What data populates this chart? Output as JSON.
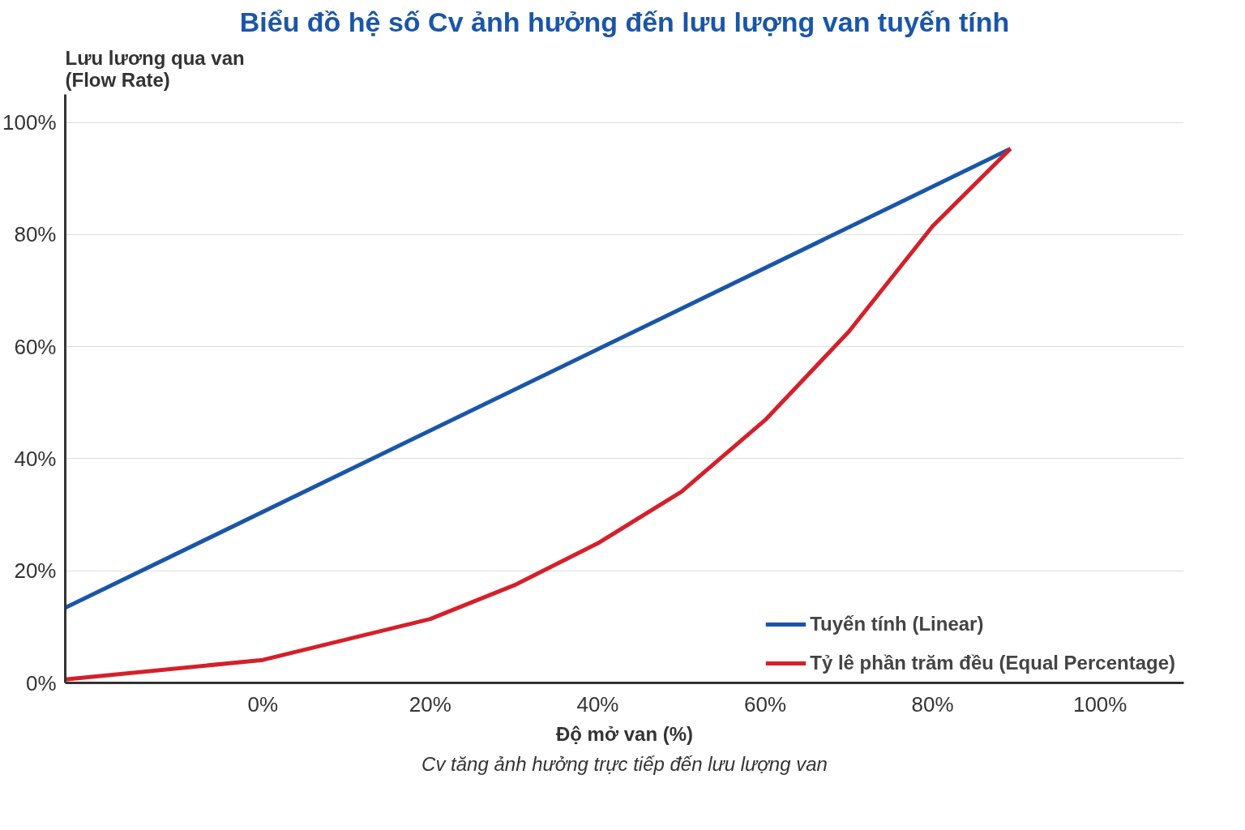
{
  "chart_data": {
    "type": "line",
    "title": "Biểu đồ hệ số Cv ảnh hưởng đến lưu lượng van tuyến tính",
    "ylabel": "Lưu lương qua van\n(Flow Rate)",
    "xlabel": "Độ mở van (%)",
    "annotations": [
      "Cv tăng ảnh hưởng trực tiếp đến lưu lượng van"
    ],
    "series": [
      {
        "name": "Tuyến tính (Linear)",
        "color": "#1a56a8",
        "x": [
          -23.6,
          89.3
        ],
        "values": [
          13.4,
          95.3
        ]
      },
      {
        "name": "Tỷ lê phần trăm đều (Equal Percentage)",
        "color": "#d4202a",
        "x": [
          -23.6,
          0,
          20,
          30,
          40,
          50,
          60,
          70,
          80,
          89.3
        ],
        "values": [
          0.6,
          4.1,
          11.4,
          17.4,
          24.9,
          34.1,
          46.9,
          62.7,
          81.5,
          95.3
        ]
      }
    ],
    "xlim": [
      -23.6,
      110
    ],
    "ylim": [
      0,
      105
    ],
    "xticks": [
      {
        "value": 0,
        "label": "0%"
      },
      {
        "value": 20,
        "label": "20%"
      },
      {
        "value": 40,
        "label": "40%"
      },
      {
        "value": 60,
        "label": "60%"
      },
      {
        "value": 80,
        "label": "80%"
      },
      {
        "value": 100,
        "label": "100%"
      }
    ],
    "yticks": [
      {
        "value": 0,
        "label": "0%"
      },
      {
        "value": 20,
        "label": "20%"
      },
      {
        "value": 40,
        "label": "40%"
      },
      {
        "value": 60,
        "label": "60%"
      },
      {
        "value": 80,
        "label": "80%"
      },
      {
        "value": 100,
        "label": "100%"
      }
    ],
    "grid": "y",
    "legend": "bottom right",
    "line_style": "solid",
    "marker": "none"
  }
}
